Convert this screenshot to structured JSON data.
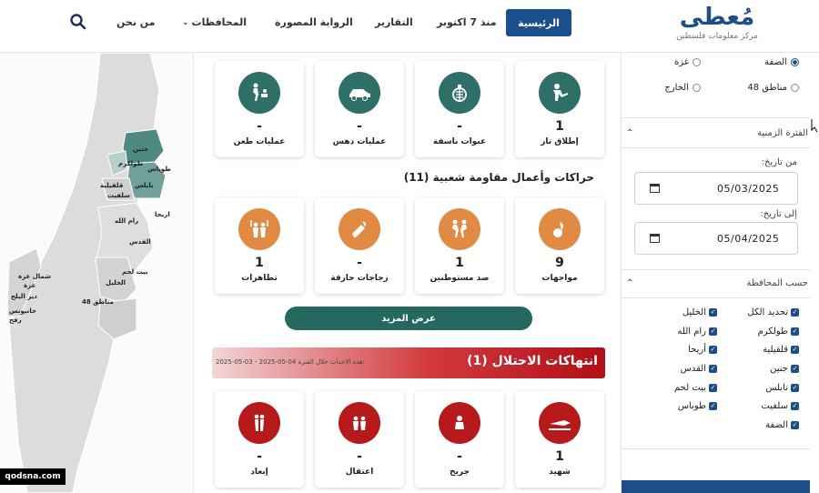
{
  "header": {
    "logo_title": "مُعطى",
    "logo_subtitle": "مركز معلومات فلسطين",
    "nav": {
      "home": "الرئيسية",
      "oct7": "منذ 7 اكتوبر",
      "reports": "التقارير",
      "photo_story": "الرواية المصورة",
      "governorates": "المحافظات",
      "about": "من نحن"
    }
  },
  "map": {
    "labels": {
      "jenin": "جنين",
      "tulkarm": "طولكرم",
      "tubas": "طوباس",
      "qalqilya": "قلقيلية",
      "nablus": "نابلس",
      "salfit": "سلفيت",
      "ramallah": "رام الله",
      "jericho": "اريحا",
      "jerusalem": "القدس",
      "bethlehem": "بيت لحم",
      "hebron": "الخليل",
      "area48": "مناطق 48",
      "north_gaza": "شمال غزة",
      "gaza": "غزة",
      "deir_balah": "دير البلح",
      "khan_younis": "خانيونس",
      "rafah": "رفح"
    }
  },
  "resistance_cards": [
    {
      "label": "إطلاق نار",
      "count": "1",
      "icon": "shooting-icon"
    },
    {
      "label": "عبوات ناسفة",
      "count": "-",
      "icon": "explosive-icon"
    },
    {
      "label": "عمليات دهس",
      "count": "-",
      "icon": "ramming-icon"
    },
    {
      "label": "عمليات طعن",
      "count": "-",
      "icon": "stabbing-icon"
    }
  ],
  "popular": {
    "title": "حراكات وأعمال مقاومة شعبية (11)",
    "cards": [
      {
        "label": "مواجهات",
        "count": "9",
        "icon": "clashes-icon"
      },
      {
        "label": "صد مستوطنين",
        "count": "1",
        "icon": "settlers-repel-icon"
      },
      {
        "label": "زجاجات حارقة",
        "count": "-",
        "icon": "molotov-icon"
      },
      {
        "label": "تظاهرات",
        "count": "1",
        "icon": "protest-icon"
      }
    ],
    "more_button": "عرض المزيد"
  },
  "violations": {
    "title": "انتهاكات الاحتلال (1)",
    "note_prefix": "هذه الاحداث خلال الفترة:",
    "note_range": "2025-05-03 - 2025-05-04",
    "cards": [
      {
        "label": "شهيد",
        "count": "1",
        "icon": "martyr-icon"
      },
      {
        "label": "جريح",
        "count": "-",
        "icon": "injured-icon"
      },
      {
        "label": "اعتقال",
        "count": "-",
        "icon": "arrest-icon"
      },
      {
        "label": "إبعاد",
        "count": "-",
        "icon": "deportation-icon"
      }
    ]
  },
  "filters": {
    "regions": [
      {
        "label": "الضفة",
        "selected": true
      },
      {
        "label": "غزة",
        "selected": false
      },
      {
        "label": "مناطق 48",
        "selected": false
      },
      {
        "label": "الخارج",
        "selected": false
      }
    ],
    "period_title": "الفترة الزمنية",
    "from_label": "من تاريخ:",
    "from_value": "05/03/2025",
    "to_label": "إلى تاريخ:",
    "to_value": "05/04/2025",
    "governorate_title": "حسب المحافظة",
    "governorates": [
      "تحديد الكل",
      "الخليل",
      "طولكرم",
      "رام الله",
      "قلقيلية",
      "أريحا",
      "جنين",
      "القدس",
      "نابلس",
      "بيت لحم",
      "سلفيت",
      "طوباس",
      "الضفة"
    ]
  },
  "watermark": "qodsna.com",
  "colors": {
    "brand_blue": "#1d4e89",
    "teal": "#2e6f68",
    "orange": "#e08a43",
    "red": "#b71a1a"
  }
}
